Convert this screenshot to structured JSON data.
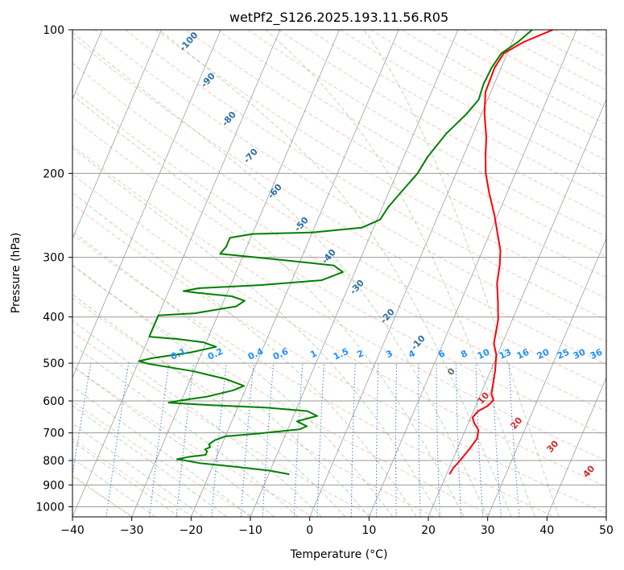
{
  "chart_data": {
    "type": "line",
    "title": "wetPf2_S126.2025.193.11.56.R05",
    "xlabel": "Temperature (°C)",
    "ylabel": "Pressure (hPa)",
    "xlim": [
      -40,
      50
    ],
    "ylim": [
      1050,
      100
    ],
    "y_scale": "log",
    "grid": true,
    "x_ticks": [
      {
        "v": -40,
        "label": "−40"
      },
      {
        "v": -30,
        "label": "−30"
      },
      {
        "v": -20,
        "label": "−20"
      },
      {
        "v": -10,
        "label": "−10"
      },
      {
        "v": 0,
        "label": "0"
      },
      {
        "v": 10,
        "label": "10"
      },
      {
        "v": 20,
        "label": "20"
      },
      {
        "v": 30,
        "label": "30"
      },
      {
        "v": 40,
        "label": "40"
      },
      {
        "v": 50,
        "label": "50"
      }
    ],
    "y_ticks": [
      {
        "v": 100,
        "label": "100"
      },
      {
        "v": 200,
        "label": "200"
      },
      {
        "v": 300,
        "label": "300"
      },
      {
        "v": 400,
        "label": "400"
      },
      {
        "v": 500,
        "label": "500"
      },
      {
        "v": 600,
        "label": "600"
      },
      {
        "v": 700,
        "label": "700"
      },
      {
        "v": 800,
        "label": "800"
      },
      {
        "v": 900,
        "label": "900"
      },
      {
        "v": 1000,
        "label": "1000"
      }
    ],
    "series": [
      {
        "color": "#ff0000",
        "points": [
          [
            20.5,
            855
          ],
          [
            20.7,
            830
          ],
          [
            21.3,
            800
          ],
          [
            22.0,
            760
          ],
          [
            22.6,
            720
          ],
          [
            22.2,
            690
          ],
          [
            21.0,
            668
          ],
          [
            20.3,
            650
          ],
          [
            20.8,
            630
          ],
          [
            22.0,
            615
          ],
          [
            22.6,
            598
          ],
          [
            21.8,
            580
          ],
          [
            21.4,
            555
          ],
          [
            20.8,
            520
          ],
          [
            19.8,
            480
          ],
          [
            18.6,
            455
          ],
          [
            18.2,
            435
          ],
          [
            17.6,
            405
          ],
          [
            16.2,
            370
          ],
          [
            14.8,
            340
          ],
          [
            13.9,
            310
          ],
          [
            13.0,
            290
          ],
          [
            11.5,
            270
          ],
          [
            9.5,
            245
          ],
          [
            7.0,
            220
          ],
          [
            5.0,
            200
          ],
          [
            3.8,
            185
          ],
          [
            2.5,
            168
          ],
          [
            0.5,
            150
          ],
          [
            -0.9,
            135
          ],
          [
            -1.1,
            120
          ],
          [
            -0.6,
            112
          ],
          [
            2.0,
            106
          ],
          [
            6.0,
            100
          ]
        ]
      },
      {
        "color": "#008000",
        "points": [
          [
            -6.5,
            855
          ],
          [
            -10.0,
            840
          ],
          [
            -16.0,
            825
          ],
          [
            -22.5,
            810
          ],
          [
            -25.0,
            800
          ],
          [
            -26.5,
            795
          ],
          [
            -24.5,
            785
          ],
          [
            -22.0,
            778
          ],
          [
            -22.0,
            765
          ],
          [
            -22.5,
            758
          ],
          [
            -21.8,
            750
          ],
          [
            -22.2,
            740
          ],
          [
            -21.5,
            725
          ],
          [
            -20.0,
            712
          ],
          [
            -15.0,
            703
          ],
          [
            -8.0,
            688
          ],
          [
            -7.0,
            678
          ],
          [
            -9.0,
            662
          ],
          [
            -6.0,
            645
          ],
          [
            -8.0,
            630
          ],
          [
            -15.0,
            620
          ],
          [
            -25.0,
            612
          ],
          [
            -32.0,
            605
          ],
          [
            -30.0,
            598
          ],
          [
            -26.0,
            588
          ],
          [
            -22.0,
            570
          ],
          [
            -20.5,
            558
          ],
          [
            -24.0,
            540
          ],
          [
            -30.0,
            520
          ],
          [
            -38.0,
            502
          ],
          [
            -40.0,
            495
          ],
          [
            -38.0,
            488
          ],
          [
            -32.0,
            475
          ],
          [
            -28.0,
            462
          ],
          [
            -30.5,
            452
          ],
          [
            -35.0,
            445
          ],
          [
            -40.0,
            440
          ],
          [
            -40.0,
            397
          ],
          [
            -34.0,
            393
          ],
          [
            -27.5,
            380
          ],
          [
            -26.5,
            370
          ],
          [
            -29.0,
            362
          ],
          [
            -35.0,
            356
          ],
          [
            -37.5,
            353
          ],
          [
            -35.0,
            348
          ],
          [
            -25.0,
            343
          ],
          [
            -15.0,
            335
          ],
          [
            -12.0,
            322
          ],
          [
            -14.0,
            312
          ],
          [
            -24.0,
            303
          ],
          [
            -34.0,
            295
          ],
          [
            -33.5,
            285
          ],
          [
            -33.5,
            273
          ],
          [
            -30.0,
            268
          ],
          [
            -20.0,
            266
          ],
          [
            -12.0,
            260
          ],
          [
            -9.5,
            250
          ],
          [
            -9.0,
            235
          ],
          [
            -8.0,
            220
          ],
          [
            -6.5,
            200
          ],
          [
            -6.0,
            185
          ],
          [
            -4.5,
            165
          ],
          [
            -2.5,
            150
          ],
          [
            -1.5,
            140
          ],
          [
            -1.8,
            130
          ],
          [
            -1.6,
            120
          ],
          [
            -1.0,
            112
          ],
          [
            1.0,
            106
          ],
          [
            2.5,
            100
          ]
        ]
      }
    ],
    "annotations": {
      "dry_adiabats": [
        "-100",
        "-90",
        "-80",
        "-70",
        "-60",
        "-50",
        "-40",
        "-30",
        "-20",
        "-10",
        "0",
        "10",
        "20",
        "30",
        "40"
      ],
      "mixing_ratio_labels": [
        "0.1",
        "0.2",
        "0.4",
        "0.6",
        "1",
        "1.5",
        "2",
        "3",
        "4",
        "6",
        "8",
        "10",
        "13",
        "16",
        "20",
        "25",
        "30",
        "36"
      ],
      "mixing_ratio_values": [
        0.1,
        0.2,
        0.4,
        0.6,
        1,
        1.5,
        2,
        3,
        4,
        6,
        8,
        10,
        13,
        16,
        20,
        25,
        30,
        36
      ]
    }
  }
}
